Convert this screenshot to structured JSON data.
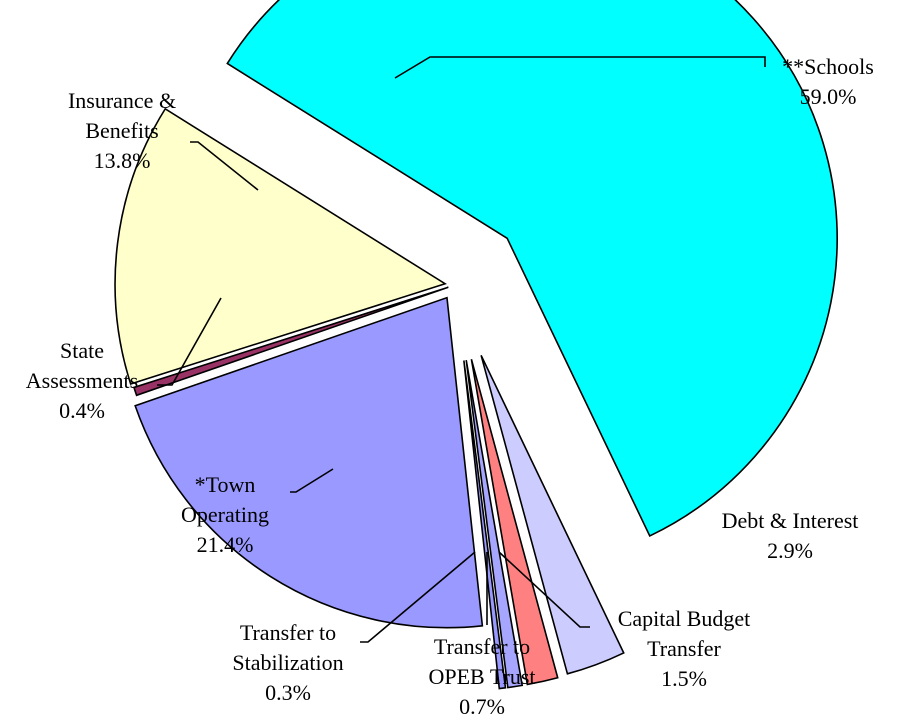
{
  "chart_data": {
    "type": "pie",
    "title": "",
    "exploded": true,
    "slices": [
      {
        "key": "schools",
        "label_lines": [
          "**Schools"
        ],
        "percent_label": "59.0%",
        "value": 59.0,
        "color": "#00FFFF"
      },
      {
        "key": "debt",
        "label_lines": [
          "Debt & Interest"
        ],
        "percent_label": "2.9%",
        "value": 2.9,
        "color": "#CCCCFF"
      },
      {
        "key": "capital",
        "label_lines": [
          "Capital Budget",
          "Transfer"
        ],
        "percent_label": "1.5%",
        "value": 1.5,
        "color": "#FF8080"
      },
      {
        "key": "opeb",
        "label_lines": [
          "Transfer to",
          "OPEB Trust"
        ],
        "percent_label": "0.7%",
        "value": 0.7,
        "color": "#A6A6FF"
      },
      {
        "key": "stabilization",
        "label_lines": [
          "Transfer to",
          "Stabilization"
        ],
        "percent_label": "0.3%",
        "value": 0.3,
        "color": "#9999FF"
      },
      {
        "key": "town",
        "label_lines": [
          "*Town",
          "Operating"
        ],
        "percent_label": "21.4%",
        "value": 21.4,
        "color": "#9999FF"
      },
      {
        "key": "state",
        "label_lines": [
          "State",
          "Assessments"
        ],
        "percent_label": "0.4%",
        "value": 0.4,
        "color": "#993366"
      },
      {
        "key": "insurance",
        "label_lines": [
          "Insurance &",
          "Benefits"
        ],
        "percent_label": "13.8%",
        "value": 13.8,
        "color": "#FFFFCC"
      }
    ]
  }
}
